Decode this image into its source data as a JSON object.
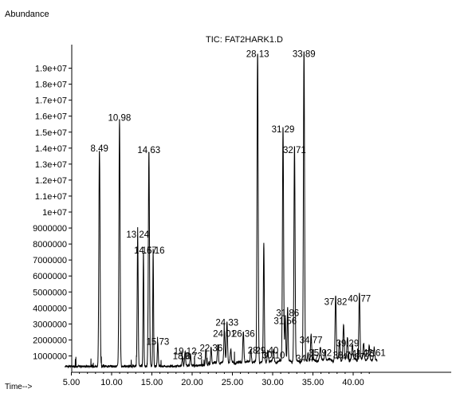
{
  "chart_data": {
    "type": "line",
    "title": "TIC: FAT2HARK1.D",
    "ylabel": "Abundance",
    "xlabel": "Time-->",
    "xlim": [
      4.2,
      43.0
    ],
    "ylim": [
      0,
      19800000
    ],
    "x_ticks": [
      5,
      10,
      15,
      20,
      25,
      30,
      35,
      40
    ],
    "x_tick_labels": [
      "5.00",
      "10.00",
      "15.00",
      "20.00",
      "25.00",
      "30.00",
      "35.00",
      "40.00"
    ],
    "y_ticks": [
      1000000,
      2000000,
      3000000,
      4000000,
      5000000,
      6000000,
      7000000,
      8000000,
      9000000,
      10000000,
      11000000,
      12000000,
      13000000,
      14000000,
      15000000,
      16000000,
      17000000,
      18000000,
      19000000
    ],
    "y_tick_labels": [
      "1000000",
      "2000000",
      "3000000",
      "4000000",
      "5000000",
      "6000000",
      "7000000",
      "8000000",
      "9000000",
      "1e+07",
      "1.1e+07",
      "1.2e+07",
      "1.3e+07",
      "1.4e+07",
      "1.5e+07",
      "1.6e+07",
      "1.7e+07",
      "1.8e+07",
      "1.9e+07"
    ],
    "baseline": 350000,
    "peaks": [
      {
        "t": 8.49,
        "h": 13600000,
        "label": "8.49",
        "w": 0.07
      },
      {
        "t": 10.98,
        "h": 15500000,
        "label": "10.98",
        "w": 0.07
      },
      {
        "t": 13.24,
        "h": 8200000,
        "label": "13.24",
        "w": 0.06
      },
      {
        "t": 13.95,
        "h": 7200000,
        "label": "",
        "w": 0.05
      },
      {
        "t": 14.63,
        "h": 13500000,
        "label": "14.63",
        "w": 0.07
      },
      {
        "t": 15.16,
        "h": 7200000,
        "label": "",
        "w": 0.05
      },
      {
        "t": 15.73,
        "h": 1500000,
        "label": "15.73",
        "w": 0.06
      },
      {
        "t": 18.8,
        "h": 600000,
        "label": "",
        "w": 0.06
      },
      {
        "t": 19.12,
        "h": 900000,
        "label": "19.12",
        "w": 0.06
      },
      {
        "t": 19.8,
        "h": 700000,
        "label": "",
        "w": 0.06
      },
      {
        "t": 21.7,
        "h": 1000000,
        "label": "",
        "w": 0.06
      },
      {
        "t": 22.36,
        "h": 1100000,
        "label": "22.36",
        "w": 0.06
      },
      {
        "t": 23.2,
        "h": 1200000,
        "label": "",
        "w": 0.07
      },
      {
        "t": 24.01,
        "h": 2000000,
        "label": "24.01",
        "w": 0.07
      },
      {
        "t": 24.33,
        "h": 2700000,
        "label": "24.33",
        "w": 0.07
      },
      {
        "t": 24.8,
        "h": 800000,
        "label": "",
        "w": 0.07
      },
      {
        "t": 26.36,
        "h": 2000000,
        "label": "26.36",
        "w": 0.07
      },
      {
        "t": 27.3,
        "h": 900000,
        "label": "",
        "w": 0.07
      },
      {
        "t": 28.13,
        "h": 19500000,
        "label": "28.13",
        "w": 0.07
      },
      {
        "t": 28.9,
        "h": 7400000,
        "label": "",
        "w": 0.06
      },
      {
        "t": 29.4,
        "h": 800000,
        "label": "",
        "w": 0.07
      },
      {
        "t": 30.1,
        "h": 700000,
        "label": "",
        "w": 0.07
      },
      {
        "t": 31.29,
        "h": 14800000,
        "label": "31.29",
        "w": 0.07
      },
      {
        "t": 31.56,
        "h": 2800000,
        "label": "31.56",
        "w": 0.06
      },
      {
        "t": 31.86,
        "h": 3300000,
        "label": "31.86",
        "w": 0.06
      },
      {
        "t": 32.71,
        "h": 13500000,
        "label": "32.71",
        "w": 0.07
      },
      {
        "t": 33.89,
        "h": 19500000,
        "label": "33.89",
        "w": 0.07
      },
      {
        "t": 34.4,
        "h": 600000,
        "label": "",
        "w": 0.06
      },
      {
        "t": 34.77,
        "h": 1600000,
        "label": "34.77",
        "w": 0.07
      },
      {
        "t": 35.92,
        "h": 800000,
        "label": "35.92",
        "w": 0.07
      },
      {
        "t": 36.5,
        "h": 700000,
        "label": "",
        "w": 0.07
      },
      {
        "t": 37.82,
        "h": 4000000,
        "label": "37.82",
        "w": 0.07
      },
      {
        "t": 38.3,
        "h": 1200000,
        "label": "",
        "w": 0.07
      },
      {
        "t": 38.8,
        "h": 2200000,
        "label": "",
        "w": 0.07
      },
      {
        "t": 39.29,
        "h": 1400000,
        "label": "39.29",
        "w": 0.07
      },
      {
        "t": 39.9,
        "h": 900000,
        "label": "",
        "w": 0.07
      },
      {
        "t": 40.77,
        "h": 4200000,
        "label": "40.77",
        "w": 0.07
      },
      {
        "t": 41.3,
        "h": 1000000,
        "label": "",
        "w": 0.07
      },
      {
        "t": 42.0,
        "h": 900000,
        "label": "",
        "w": 0.07
      },
      {
        "t": 42.61,
        "h": 800000,
        "label": "42.61",
        "w": 0.07
      }
    ],
    "annotations": [
      {
        "text": "8.49",
        "x": 8.49,
        "y": 13600000
      },
      {
        "text": "10.98",
        "x": 10.98,
        "y": 15500000
      },
      {
        "text": "13.24",
        "x": 13.24,
        "y": 8200000
      },
      {
        "text": "14.63",
        "x": 14.63,
        "y": 13500000
      },
      {
        "text": "14.67",
        "x": 14.2,
        "y": 7200000
      },
      {
        "text": "15.16",
        "x": 15.16,
        "y": 7200000
      },
      {
        "text": "15.73",
        "x": 15.73,
        "y": 1500000
      },
      {
        "text": "18.8",
        "x": 18.7,
        "y": 600000
      },
      {
        "text": "19.12",
        "x": 19.12,
        "y": 900000
      },
      {
        "text": "19.73",
        "x": 19.85,
        "y": 600000
      },
      {
        "text": "22.36",
        "x": 22.36,
        "y": 1100000
      },
      {
        "text": "24.33",
        "x": 24.33,
        "y": 2700000
      },
      {
        "text": "24.01",
        "x": 24.01,
        "y": 2000000
      },
      {
        "text": "26.36",
        "x": 26.36,
        "y": 2000000
      },
      {
        "text": "28.",
        "x": 27.7,
        "y": 950000
      },
      {
        "text": "28.13",
        "x": 28.13,
        "y": 19500000
      },
      {
        "text": "29.40",
        "x": 29.3,
        "y": 950000
      },
      {
        "text": "30.10",
        "x": 30.1,
        "y": 650000
      },
      {
        "text": "31.29",
        "x": 31.29,
        "y": 14800000
      },
      {
        "text": "31.86",
        "x": 31.86,
        "y": 3300000
      },
      {
        "text": "31.56",
        "x": 31.56,
        "y": 2800000
      },
      {
        "text": "32.71",
        "x": 32.71,
        "y": 13500000
      },
      {
        "text": "33.89",
        "x": 33.89,
        "y": 19500000
      },
      {
        "text": "34.77",
        "x": 34.77,
        "y": 1600000
      },
      {
        "text": "34.47",
        "x": 34.3,
        "y": 450000
      },
      {
        "text": "35.92",
        "x": 35.92,
        "y": 800000
      },
      {
        "text": "37.82",
        "x": 37.82,
        "y": 4000000
      },
      {
        "text": "39.29",
        "x": 39.29,
        "y": 1400000
      },
      {
        "text": "38.7",
        "x": 38.6,
        "y": 650000
      },
      {
        "text": "40.77",
        "x": 40.77,
        "y": 4200000
      },
      {
        "text": "40.67",
        "x": 40.0,
        "y": 550000
      },
      {
        "text": "41.26",
        "x": 41.2,
        "y": 750000
      },
      {
        "text": "42.61",
        "x": 42.61,
        "y": 800000
      }
    ]
  }
}
